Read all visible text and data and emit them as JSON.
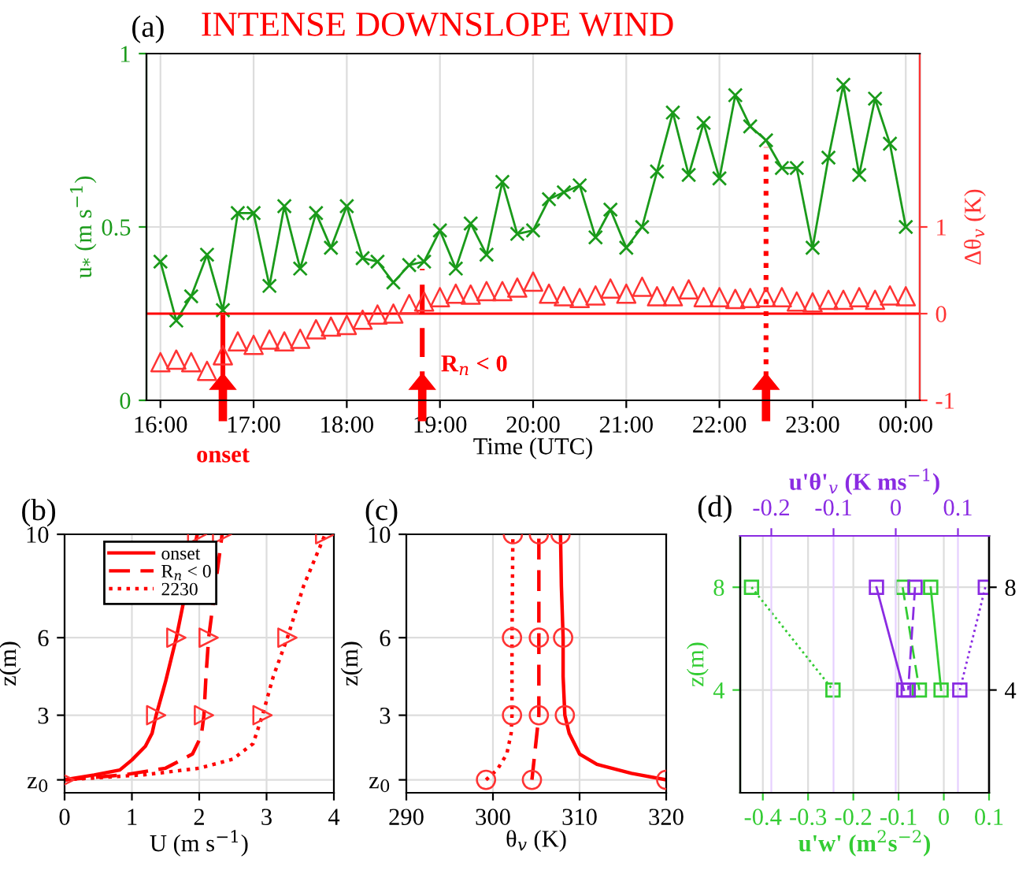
{
  "chart_data": [
    {
      "type": "line",
      "title": "INTENSE DOWNSLOPE WIND",
      "annotations": [
        "(a)"
      ],
      "xlabel": "Time (UTC)",
      "ylabel": "u$_{*}$ (m s$^{−1}$)",
      "y2label": "Δθ$_{v}$ (K)",
      "x": [
        16,
        16.17,
        16.33,
        16.5,
        16.67,
        16.83,
        17,
        17.17,
        17.33,
        17.5,
        17.67,
        17.83,
        18,
        18.17,
        18.33,
        18.5,
        18.67,
        18.83,
        19,
        19.17,
        19.33,
        19.5,
        19.67,
        19.83,
        20,
        20.17,
        20.33,
        20.5,
        20.67,
        20.83,
        21,
        21.17,
        21.33,
        21.5,
        21.67,
        21.83,
        22,
        22.17,
        22.33,
        22.5,
        22.67,
        22.83,
        23,
        23.17,
        23.33,
        23.5,
        23.67,
        23.83,
        24
      ],
      "xlim": [
        15.85,
        24.15
      ],
      "xticks": [
        {
          "value": 16,
          "label": "16:00"
        },
        {
          "value": 17,
          "label": "17:00"
        },
        {
          "value": 18,
          "label": "18:00"
        },
        {
          "value": 19,
          "label": "19:00"
        },
        {
          "value": 20,
          "label": "20:00"
        },
        {
          "value": 21,
          "label": "21:00"
        },
        {
          "value": 22,
          "label": "22:00"
        },
        {
          "value": 23,
          "label": "23:00"
        },
        {
          "value": 24,
          "label": "00:00"
        }
      ],
      "ylim": [
        0,
        1
      ],
      "yticks": [
        0,
        0.5,
        1
      ],
      "y2lim": [
        -1,
        3
      ],
      "y2ticks": [
        -1,
        0,
        1
      ],
      "grid": true,
      "series": [
        {
          "type": "line",
          "color": "#1a9a1a",
          "marker": "cross",
          "values": [
            0.4,
            0.23,
            0.3,
            0.42,
            0.26,
            0.54,
            0.54,
            0.33,
            0.56,
            0.38,
            0.54,
            0.44,
            0.56,
            0.41,
            0.4,
            0.34,
            0.39,
            0.4,
            0.49,
            0.38,
            0.51,
            0.42,
            0.63,
            0.48,
            0.49,
            0.58,
            0.6,
            0.62,
            0.47,
            0.55,
            0.44,
            0.5,
            0.66,
            0.83,
            0.65,
            0.8,
            0.64,
            0.88,
            0.79,
            0.75,
            0.67,
            0.67,
            0.44,
            0.7,
            0.91,
            0.65,
            0.87,
            0.74,
            0.5
          ]
        },
        {
          "type": "scatter",
          "axis": "y2",
          "color": "#ff3333",
          "marker": "triangle",
          "values": [
            -0.56,
            -0.53,
            -0.56,
            -0.66,
            -0.48,
            -0.32,
            -0.36,
            -0.3,
            -0.32,
            -0.29,
            -0.18,
            -0.15,
            -0.13,
            -0.07,
            -0.01,
            0.0,
            0.11,
            0.14,
            0.19,
            0.23,
            0.22,
            0.26,
            0.26,
            0.3,
            0.37,
            0.23,
            0.2,
            0.18,
            0.21,
            0.29,
            0.23,
            0.31,
            0.2,
            0.2,
            0.28,
            0.19,
            0.19,
            0.17,
            0.18,
            0.19,
            0.19,
            0.14,
            0.13,
            0.16,
            0.16,
            0.19,
            0.16,
            0.21,
            0.2
          ]
        }
      ],
      "ref_lines": [
        {
          "axis": "y2",
          "value": 0,
          "color": "#ff0000",
          "line_style": "solid"
        },
        {
          "axis": "x",
          "value": 16.67,
          "label": "onset",
          "color": "#ff0000",
          "line_style": "solid"
        },
        {
          "axis": "x",
          "value": 18.81,
          "label": "R$_{n}$ < 0",
          "color": "#ff0000",
          "line_style": "dashed"
        },
        {
          "axis": "x",
          "value": 22.5,
          "color": "#ff0000",
          "line_style": "dotted"
        }
      ]
    },
    {
      "type": "line",
      "annotations": [
        "(b)"
      ],
      "xlabel": "U (m s$^{−1}$)",
      "ylabel": "z(m)",
      "xlim": [
        0,
        4
      ],
      "xticks": [
        0,
        1,
        2,
        3,
        4
      ],
      "ylim": [
        0,
        10
      ],
      "yticks": [
        {
          "value": 0.5,
          "label": "z$_{0}$"
        },
        3,
        6,
        10
      ],
      "grid": true,
      "legend": "top left",
      "series": [
        {
          "name": "onset",
          "color": "#ff0000",
          "line_style": "solid",
          "x": [
            0,
            0.44,
            0.82,
            1.0,
            1.2,
            1.3,
            1.36,
            1.5,
            1.66,
            1.97
          ],
          "values": [
            0.5,
            0.69,
            0.88,
            1.27,
            1.8,
            2.3,
            3,
            4.3,
            6,
            10
          ]
        },
        {
          "name": "R$_{n}$ < 0",
          "color": "#ff0000",
          "line_style": "dashed",
          "x": [
            0,
            0.9,
            1.5,
            1.9,
            2.03,
            2.07,
            2.1,
            2.14,
            2.34
          ],
          "values": [
            0.5,
            0.7,
            0.95,
            1.5,
            2.2,
            3,
            4.5,
            6,
            10
          ]
        },
        {
          "name": "2230",
          "color": "#ff0000",
          "line_style": "dotted",
          "x": [
            0,
            1.2,
            2.0,
            2.5,
            2.8,
            2.94,
            3.1,
            3.31,
            3.55,
            3.87
          ],
          "values": [
            0.5,
            0.7,
            0.95,
            1.3,
            1.9,
            3,
            4.5,
            6,
            8,
            10
          ]
        },
        {
          "type": "scatter",
          "color": "#ff3333",
          "marker": "triangle-right",
          "x": [
            0,
            1.36,
            1.66,
            1.97,
            2.07,
            2.14,
            2.34,
            2.94,
            3.31,
            3.87
          ],
          "values": [
            0.5,
            3,
            6,
            10,
            3,
            6,
            10,
            3,
            6,
            10
          ]
        }
      ]
    },
    {
      "type": "line",
      "annotations": [
        "(c)"
      ],
      "xlabel": "θ$_{v}$ (K)",
      "ylabel": "z(m)",
      "xlim": [
        290,
        320
      ],
      "xticks": [
        290,
        300,
        310,
        320
      ],
      "ylim": [
        0,
        10
      ],
      "yticks": [
        {
          "value": 0.5,
          "label": "z$_{0}$"
        },
        3,
        6,
        10
      ],
      "grid": true,
      "series": [
        {
          "color": "#ff0000",
          "line_style": "solid",
          "x": [
            320,
            316,
            312,
            310,
            308.8,
            308.3,
            308.1,
            308.1,
            307.9,
            307.8
          ],
          "values": [
            0.5,
            0.75,
            1.1,
            1.5,
            2.3,
            3,
            4.5,
            6,
            8,
            10
          ]
        },
        {
          "color": "#ff0000",
          "line_style": "dashed",
          "x": [
            304.5,
            305.3,
            305.3,
            305.3
          ],
          "values": [
            0.5,
            3,
            6,
            10
          ]
        },
        {
          "color": "#ff0000",
          "line_style": "dotted",
          "x": [
            299.2,
            300.5,
            301.6,
            302.1,
            302.2,
            302.2,
            302.3
          ],
          "values": [
            0.5,
            0.9,
            1.5,
            2.3,
            3,
            6,
            10
          ]
        },
        {
          "type": "scatter",
          "color": "#ff3333",
          "marker": "circle",
          "x": [
            320,
            308.3,
            308.1,
            307.8,
            304.5,
            305.3,
            305.3,
            305.3,
            299.2,
            302.2,
            302.2,
            302.3
          ],
          "values": [
            0.5,
            3,
            6,
            10,
            0.5,
            3,
            6,
            10,
            0.5,
            3,
            6,
            10
          ]
        }
      ]
    },
    {
      "type": "line",
      "annotations": [
        "(d)"
      ],
      "xlabel": "u'w' (m$^{2}$s$^{−2}$)",
      "x2label": "u'θ'$_{v}$ (K ms$^{−1}$)",
      "ylabel": "z(m)",
      "xlim": [
        -0.45,
        0.1
      ],
      "xticks": [
        -0.4,
        -0.3,
        -0.2,
        -0.1,
        0,
        0.1
      ],
      "x2lim": [
        -0.25,
        0.15
      ],
      "x2ticks": [
        -0.2,
        -0.1,
        0,
        0.1
      ],
      "ylim": [
        0,
        10
      ],
      "yticks": [
        4,
        8
      ],
      "y2lim": [
        0,
        10
      ],
      "y2ticks": [
        4,
        8
      ],
      "grid": true,
      "marker": "square",
      "series": [
        {
          "color": "#33cc33",
          "line_style": "solid",
          "x": [
            -0.029,
            -0.006
          ],
          "values": [
            8,
            4
          ]
        },
        {
          "color": "#33cc33",
          "line_style": "dashed",
          "x": [
            -0.091,
            -0.054
          ],
          "values": [
            8,
            4
          ]
        },
        {
          "color": "#33cc33",
          "line_style": "dotted",
          "x": [
            -0.425,
            -0.245
          ],
          "values": [
            8,
            4
          ]
        },
        {
          "color": "#8a2be2",
          "axis": "x2",
          "line_style": "solid",
          "x": [
            -0.031,
            0.013
          ],
          "values": [
            8,
            4
          ]
        },
        {
          "color": "#8a2be2",
          "axis": "x2",
          "line_style": "dashed",
          "x": [
            0.031,
            0.02
          ],
          "values": [
            8,
            4
          ]
        },
        {
          "color": "#8a2be2",
          "axis": "x2",
          "line_style": "dotted",
          "x": [
            0.144,
            0.103
          ],
          "values": [
            8,
            4
          ]
        }
      ]
    }
  ]
}
